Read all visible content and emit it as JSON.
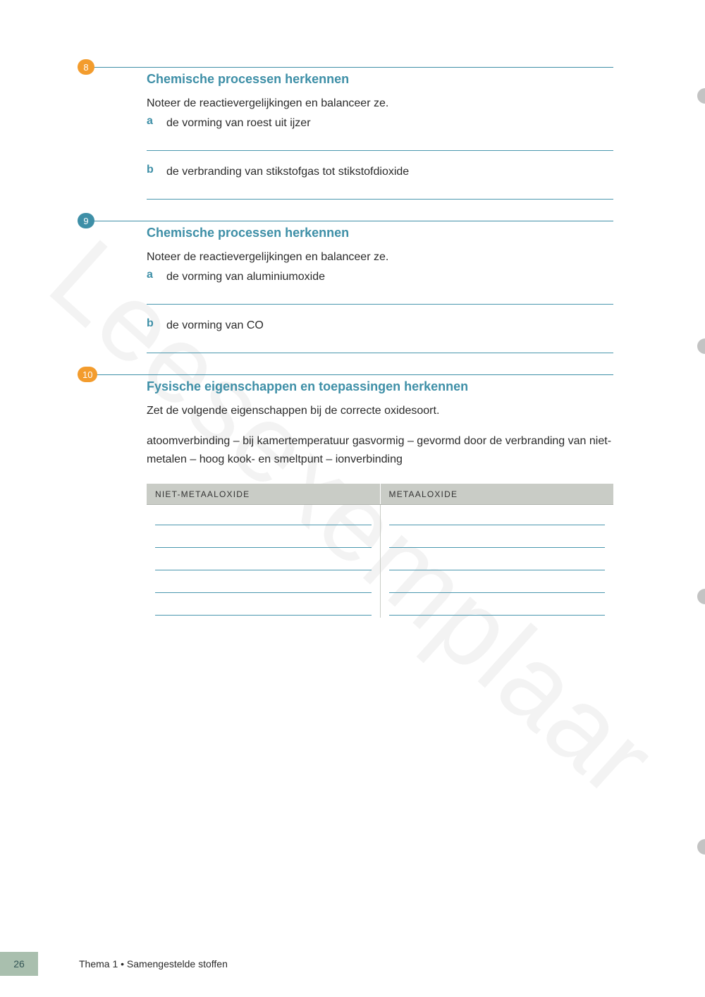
{
  "watermark": "Leesexemplaar",
  "colors": {
    "accent_teal": "#3e8fa7",
    "badge_orange": "#f39c2d",
    "rule": "#4a97ae",
    "table_header_bg": "#c9ccc6",
    "page_tab_bg": "#a9bfae",
    "punch": "#c3c3c3"
  },
  "questions": [
    {
      "number": "8",
      "badge_style": "orange",
      "title": "Chemische processen herkennen",
      "intro": "Noteer de reactievergelijkingen en balanceer ze.",
      "subs": [
        {
          "label": "a",
          "text": "de vorming van roest uit ijzer"
        },
        {
          "label": "b",
          "text": "de verbranding van stikstofgas tot stikstofdioxide"
        }
      ]
    },
    {
      "number": "9",
      "badge_style": "blue",
      "title": "Chemische processen herkennen",
      "intro": "Noteer de reactievergelijkingen en balanceer ze.",
      "subs": [
        {
          "label": "a",
          "text": "de vorming van aluminiumoxide"
        },
        {
          "label": "b",
          "text": "de vorming van CO"
        }
      ]
    },
    {
      "number": "10",
      "badge_style": "orange",
      "title": "Fysische eigenschappen en toepassingen herkennen",
      "intro": "Zet de volgende eigenschappen bij de correcte oxidesoort.",
      "properties": "atoomverbinding – bij kamertemperatuur gasvormig – gevormd door de verbranding van niet-metalen – hoog kook- en smeltpunt – ionverbinding",
      "table": {
        "columns": [
          "NIET-METAALOXIDE",
          "METAALOXIDE"
        ],
        "blank_rows": 5
      }
    }
  ],
  "punch_holes_y": [
    125,
    480,
    835,
    1190
  ],
  "footer": {
    "page": "26",
    "text": "Thema 1 • Samengestelde stoffen"
  }
}
